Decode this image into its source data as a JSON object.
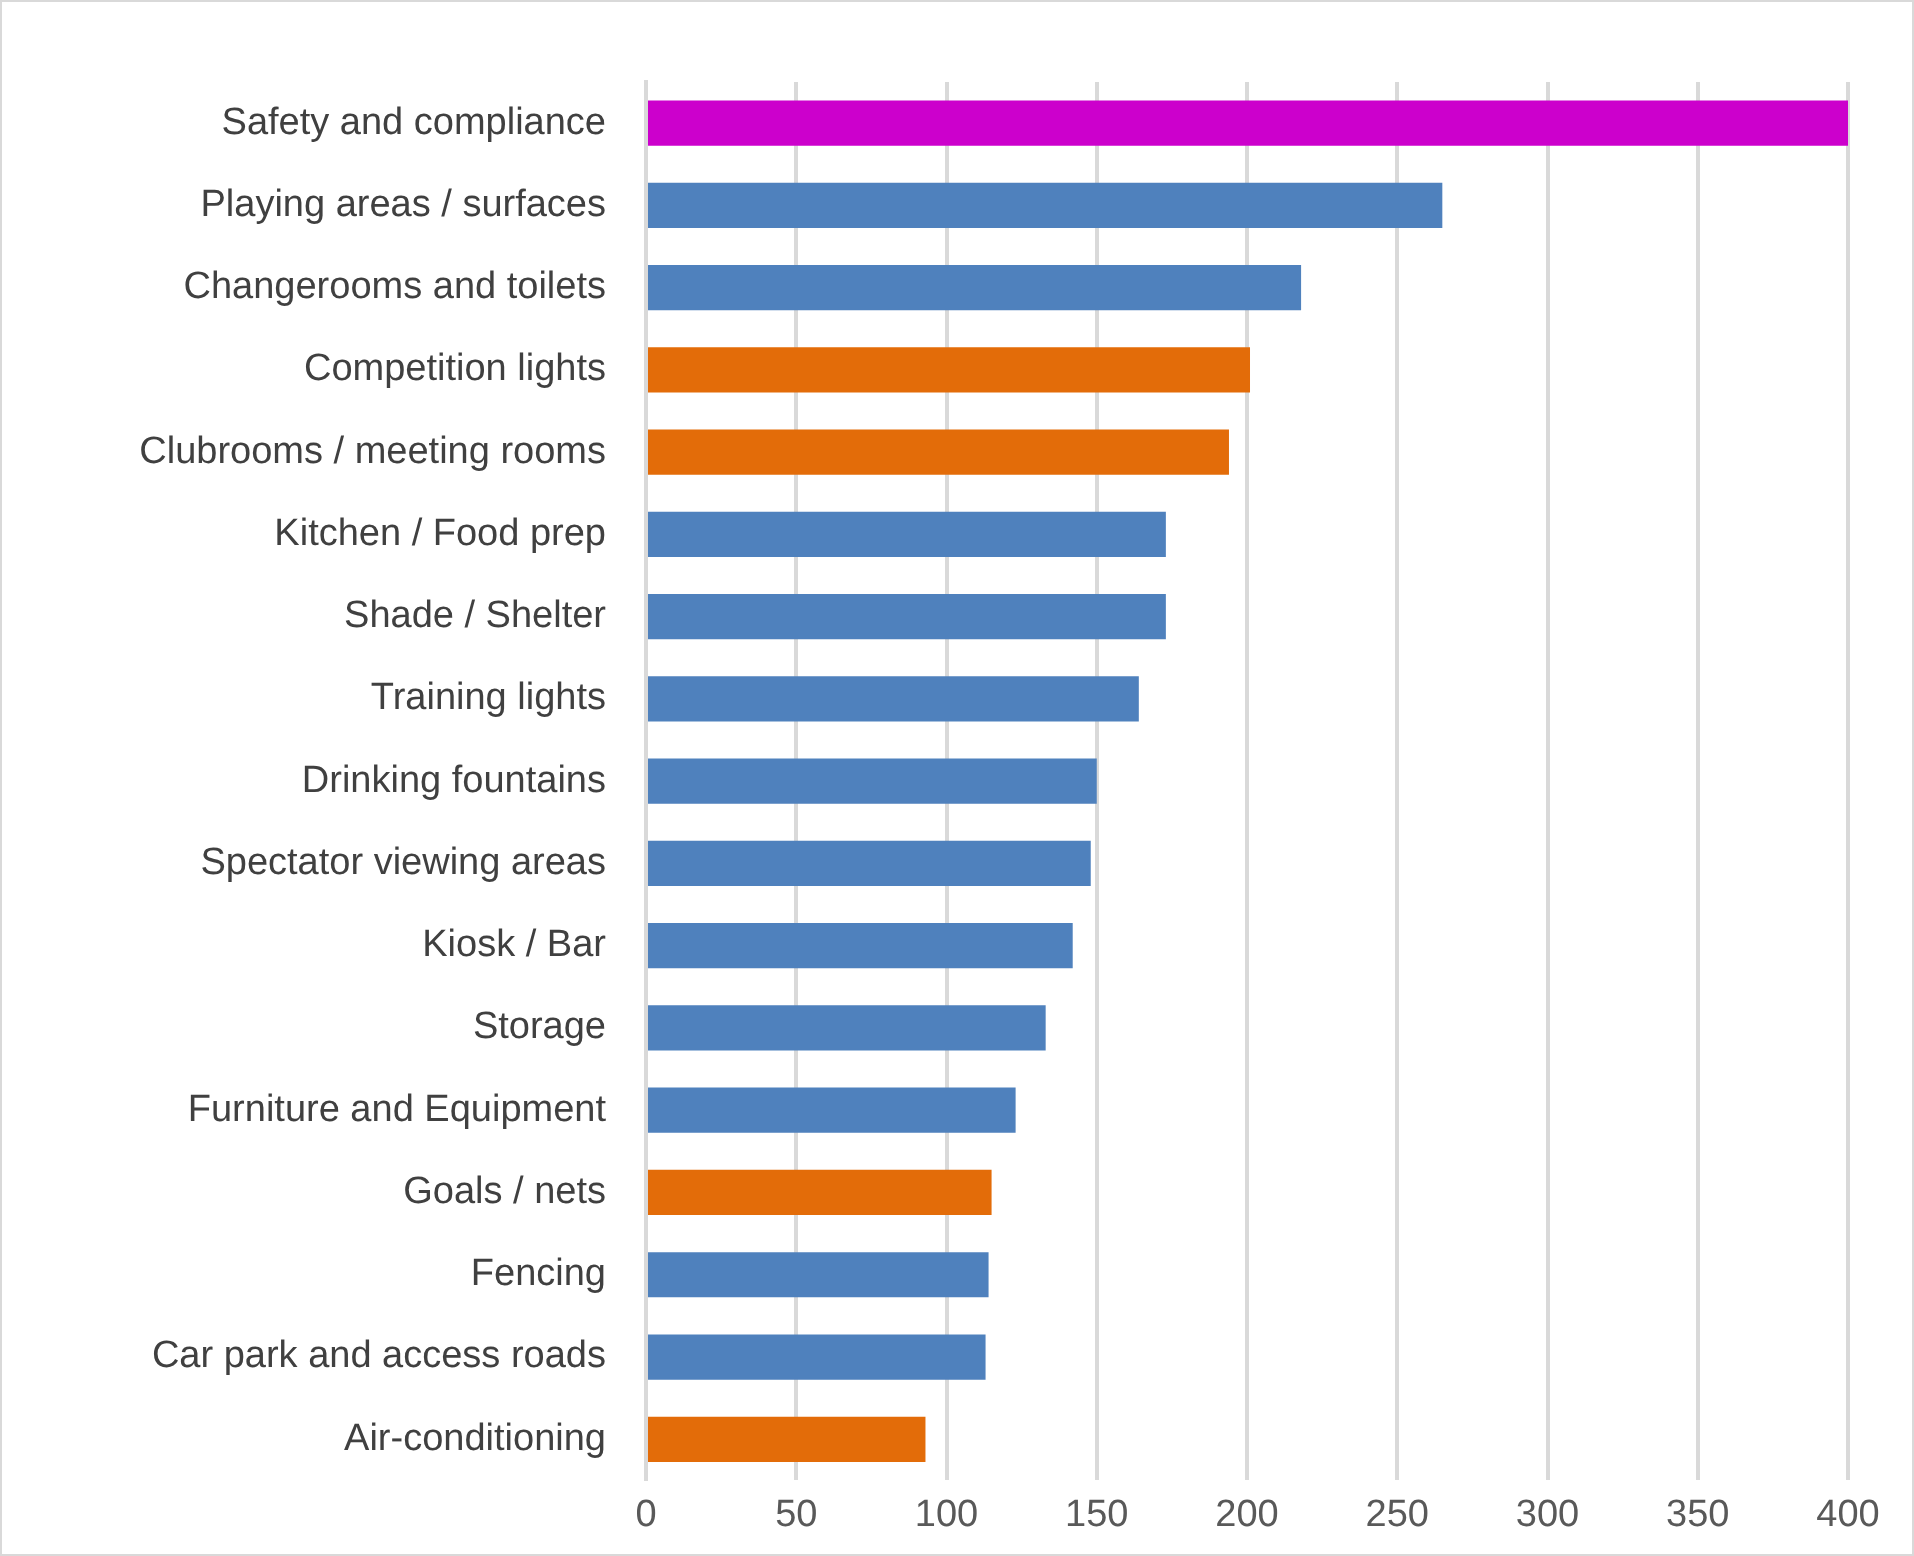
{
  "chart_data": {
    "type": "bar",
    "orientation": "horizontal",
    "categories": [
      "Safety and compliance",
      "Playing areas / surfaces",
      "Changerooms and toilets",
      "Competition lights",
      "Clubrooms / meeting rooms",
      "Kitchen / Food prep",
      "Shade / Shelter",
      "Training lights",
      "Drinking fountains",
      "Spectator viewing areas",
      "Kiosk / Bar",
      "Storage",
      "Furniture and Equipment",
      "Goals / nets",
      "Fencing",
      "Car park and access roads",
      "Air-conditioning"
    ],
    "values": [
      400,
      265,
      218,
      201,
      194,
      173,
      173,
      164,
      150,
      148,
      142,
      133,
      123,
      115,
      114,
      113,
      93
    ],
    "colors": [
      "#cc00cc",
      "#4f81bd",
      "#4f81bd",
      "#e36c09",
      "#e36c09",
      "#4f81bd",
      "#4f81bd",
      "#4f81bd",
      "#4f81bd",
      "#4f81bd",
      "#4f81bd",
      "#4f81bd",
      "#4f81bd",
      "#e36c09",
      "#4f81bd",
      "#4f81bd",
      "#e36c09"
    ],
    "xlim": [
      0,
      400
    ],
    "xticks": [
      0,
      50,
      100,
      150,
      200,
      250,
      300,
      350,
      400
    ],
    "grid": "x",
    "legend": false
  }
}
